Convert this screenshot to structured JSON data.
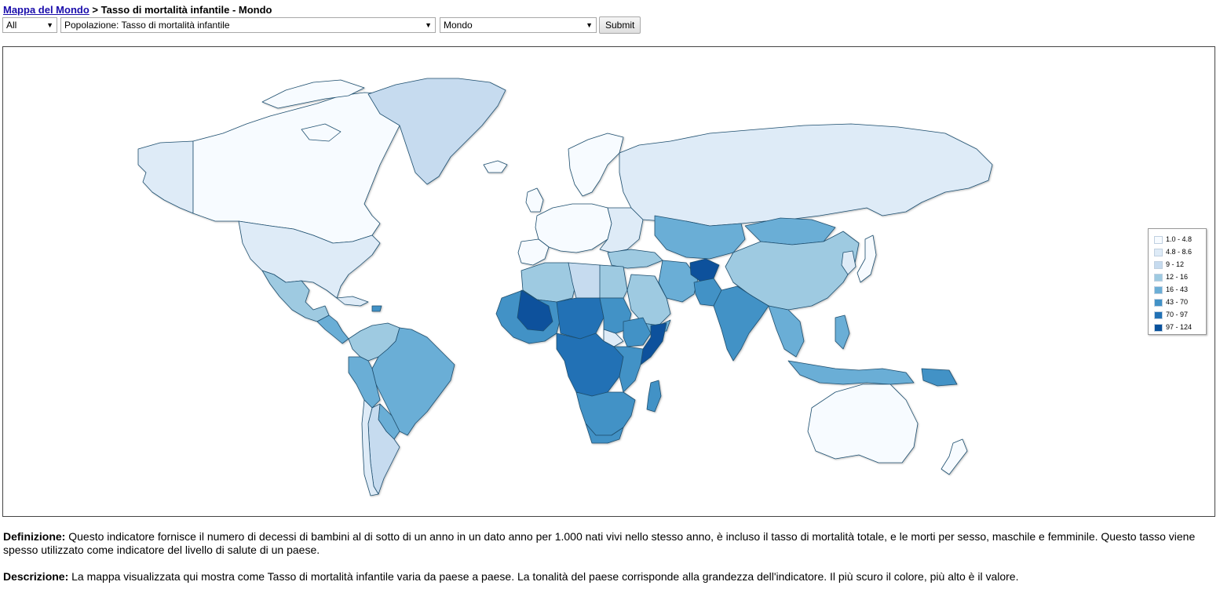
{
  "breadcrumb": {
    "link": "Mappa del Mondo",
    "separator": " > ",
    "current": "Tasso di mortalità infantile - Mondo"
  },
  "controls": {
    "category": "All",
    "indicator": "Popolazione: Tasso di mortalità infantile",
    "region": "Mondo",
    "submit": "Submit"
  },
  "legend": [
    {
      "label": "1.0 - 4.8",
      "color": "#f7fbff"
    },
    {
      "label": "4.8 - 8.6",
      "color": "#deebf7"
    },
    {
      "label": "9 - 12",
      "color": "#c6dbef"
    },
    {
      "label": "12 - 16",
      "color": "#9ecae1"
    },
    {
      "label": "16 - 43",
      "color": "#6baed6"
    },
    {
      "label": "43 - 70",
      "color": "#4292c6"
    },
    {
      "label": "70 - 97",
      "color": "#2171b5"
    },
    {
      "label": "97 - 124",
      "color": "#08519c"
    }
  ],
  "definition": {
    "label": "Definizione:",
    "text": "Questo indicatore fornisce il numero di decessi di bambini al di sotto di un anno in un dato anno per 1.000 nati vivi nello stesso anno, è incluso il tasso di mortalità totale, e le morti per sesso, maschile e femminile. Questo tasso viene spesso utilizzato come indicatore del livello di salute di un paese."
  },
  "description": {
    "label": "Descrizione:",
    "text": "La mappa visualizzata qui mostra come Tasso di mortalità infantile varia da paese a paese. La tonalità del paese corrisponde alla grandezza dell'indicatore. Il più scuro il colore, più alto è il valore."
  }
}
